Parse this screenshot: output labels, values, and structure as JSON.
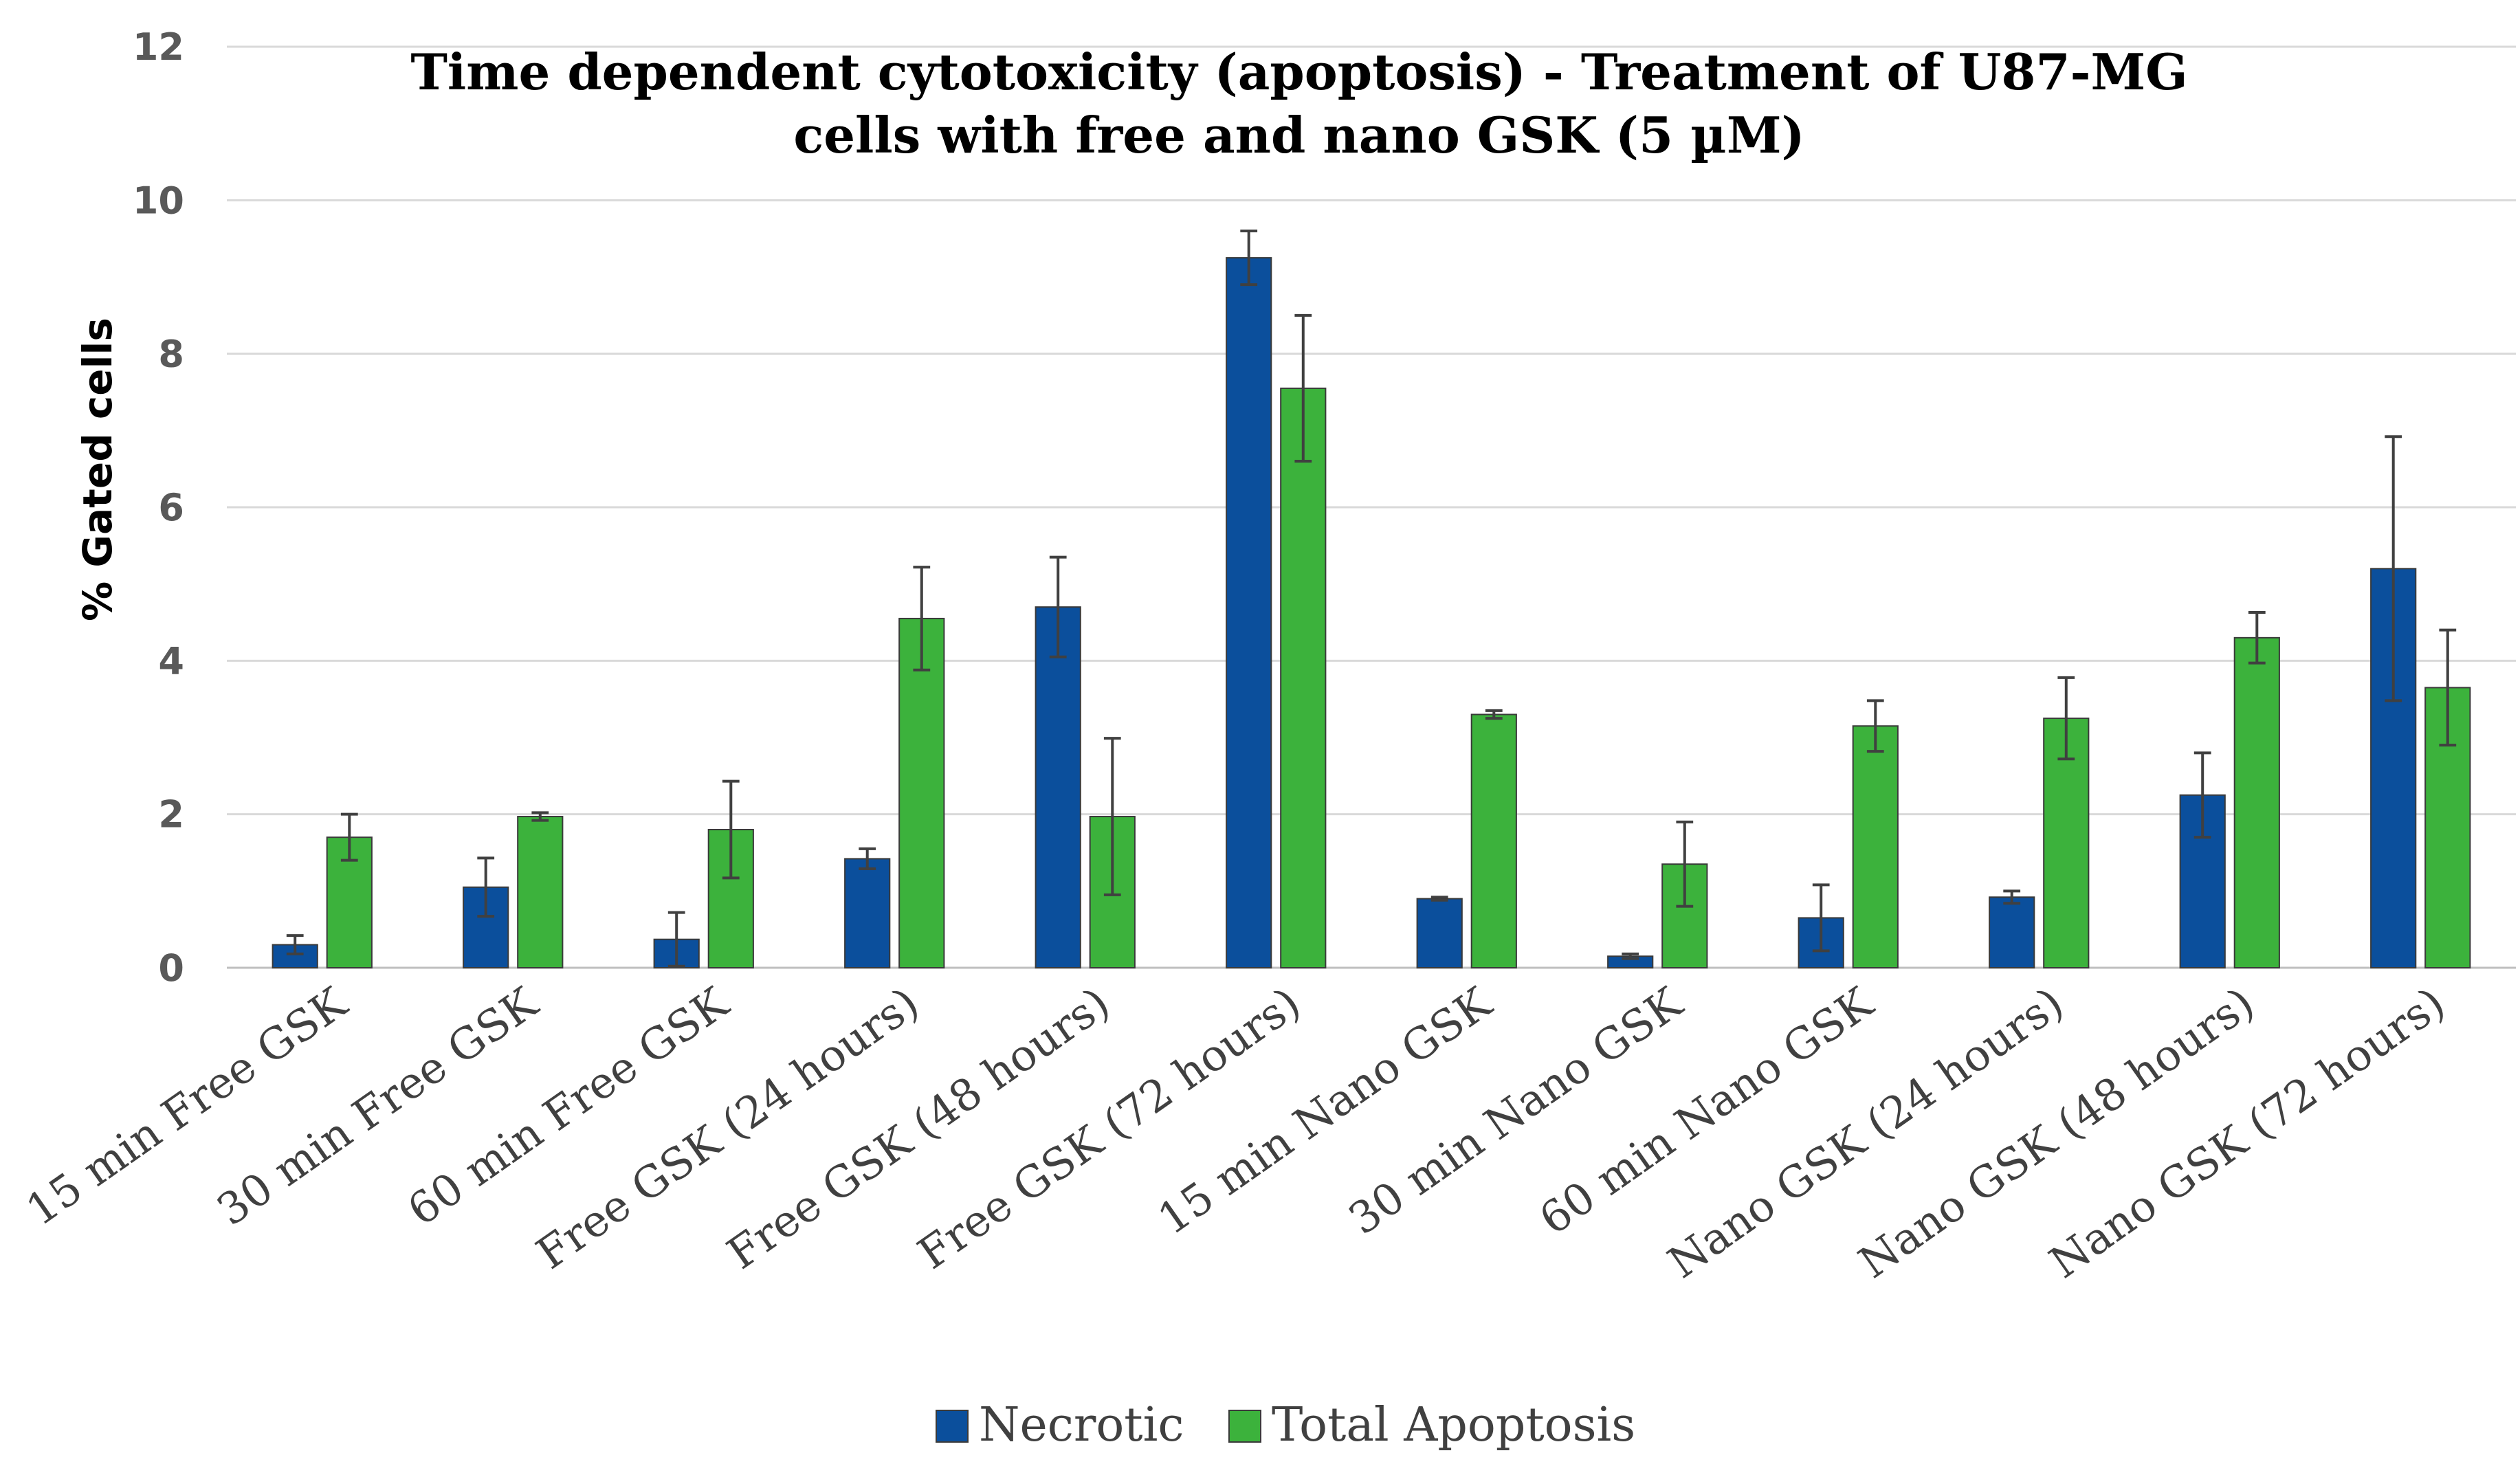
{
  "chart_data": {
    "type": "bar",
    "title_lines": [
      "Time dependent cytotoxicity (apoptosis) - Treatment of U87-MG",
      "cells with free and nano GSK (5 µM)"
    ],
    "ylabel": "% Gated cells",
    "xlabel": "",
    "ylim": [
      0,
      12
    ],
    "yticks": [
      0,
      2,
      4,
      6,
      8,
      10,
      12
    ],
    "grid": true,
    "legend_position": "bottom",
    "categories": [
      "15 min Free GSK",
      "30 min Free GSK",
      "60 min Free GSK",
      "Free GSK (24 hours)",
      "Free GSK (48 hours)",
      "Free GSK (72 hours)",
      "15 min Nano GSK",
      "30 min Nano GSK",
      "60 min Nano GSK",
      "Nano GSK (24 hours)",
      "Nano GSK (48 hours)",
      "Nano GSK (72 hours)"
    ],
    "series": [
      {
        "name": "Necrotic",
        "color": "#0b4f9c",
        "values": [
          0.3,
          1.05,
          0.37,
          1.42,
          4.7,
          9.25,
          0.9,
          0.15,
          0.65,
          0.92,
          2.25,
          5.2
        ],
        "errors": [
          0.12,
          0.38,
          0.35,
          0.13,
          0.65,
          0.35,
          0.02,
          0.03,
          0.43,
          0.08,
          0.55,
          1.72
        ]
      },
      {
        "name": "Total Apoptosis",
        "color": "#3cb23c",
        "values": [
          1.7,
          1.97,
          1.8,
          4.55,
          1.97,
          7.55,
          3.3,
          1.35,
          3.15,
          3.25,
          4.3,
          3.65
        ],
        "errors": [
          0.3,
          0.05,
          0.63,
          0.67,
          1.02,
          0.95,
          0.05,
          0.55,
          0.33,
          0.53,
          0.33,
          0.75
        ]
      }
    ]
  }
}
